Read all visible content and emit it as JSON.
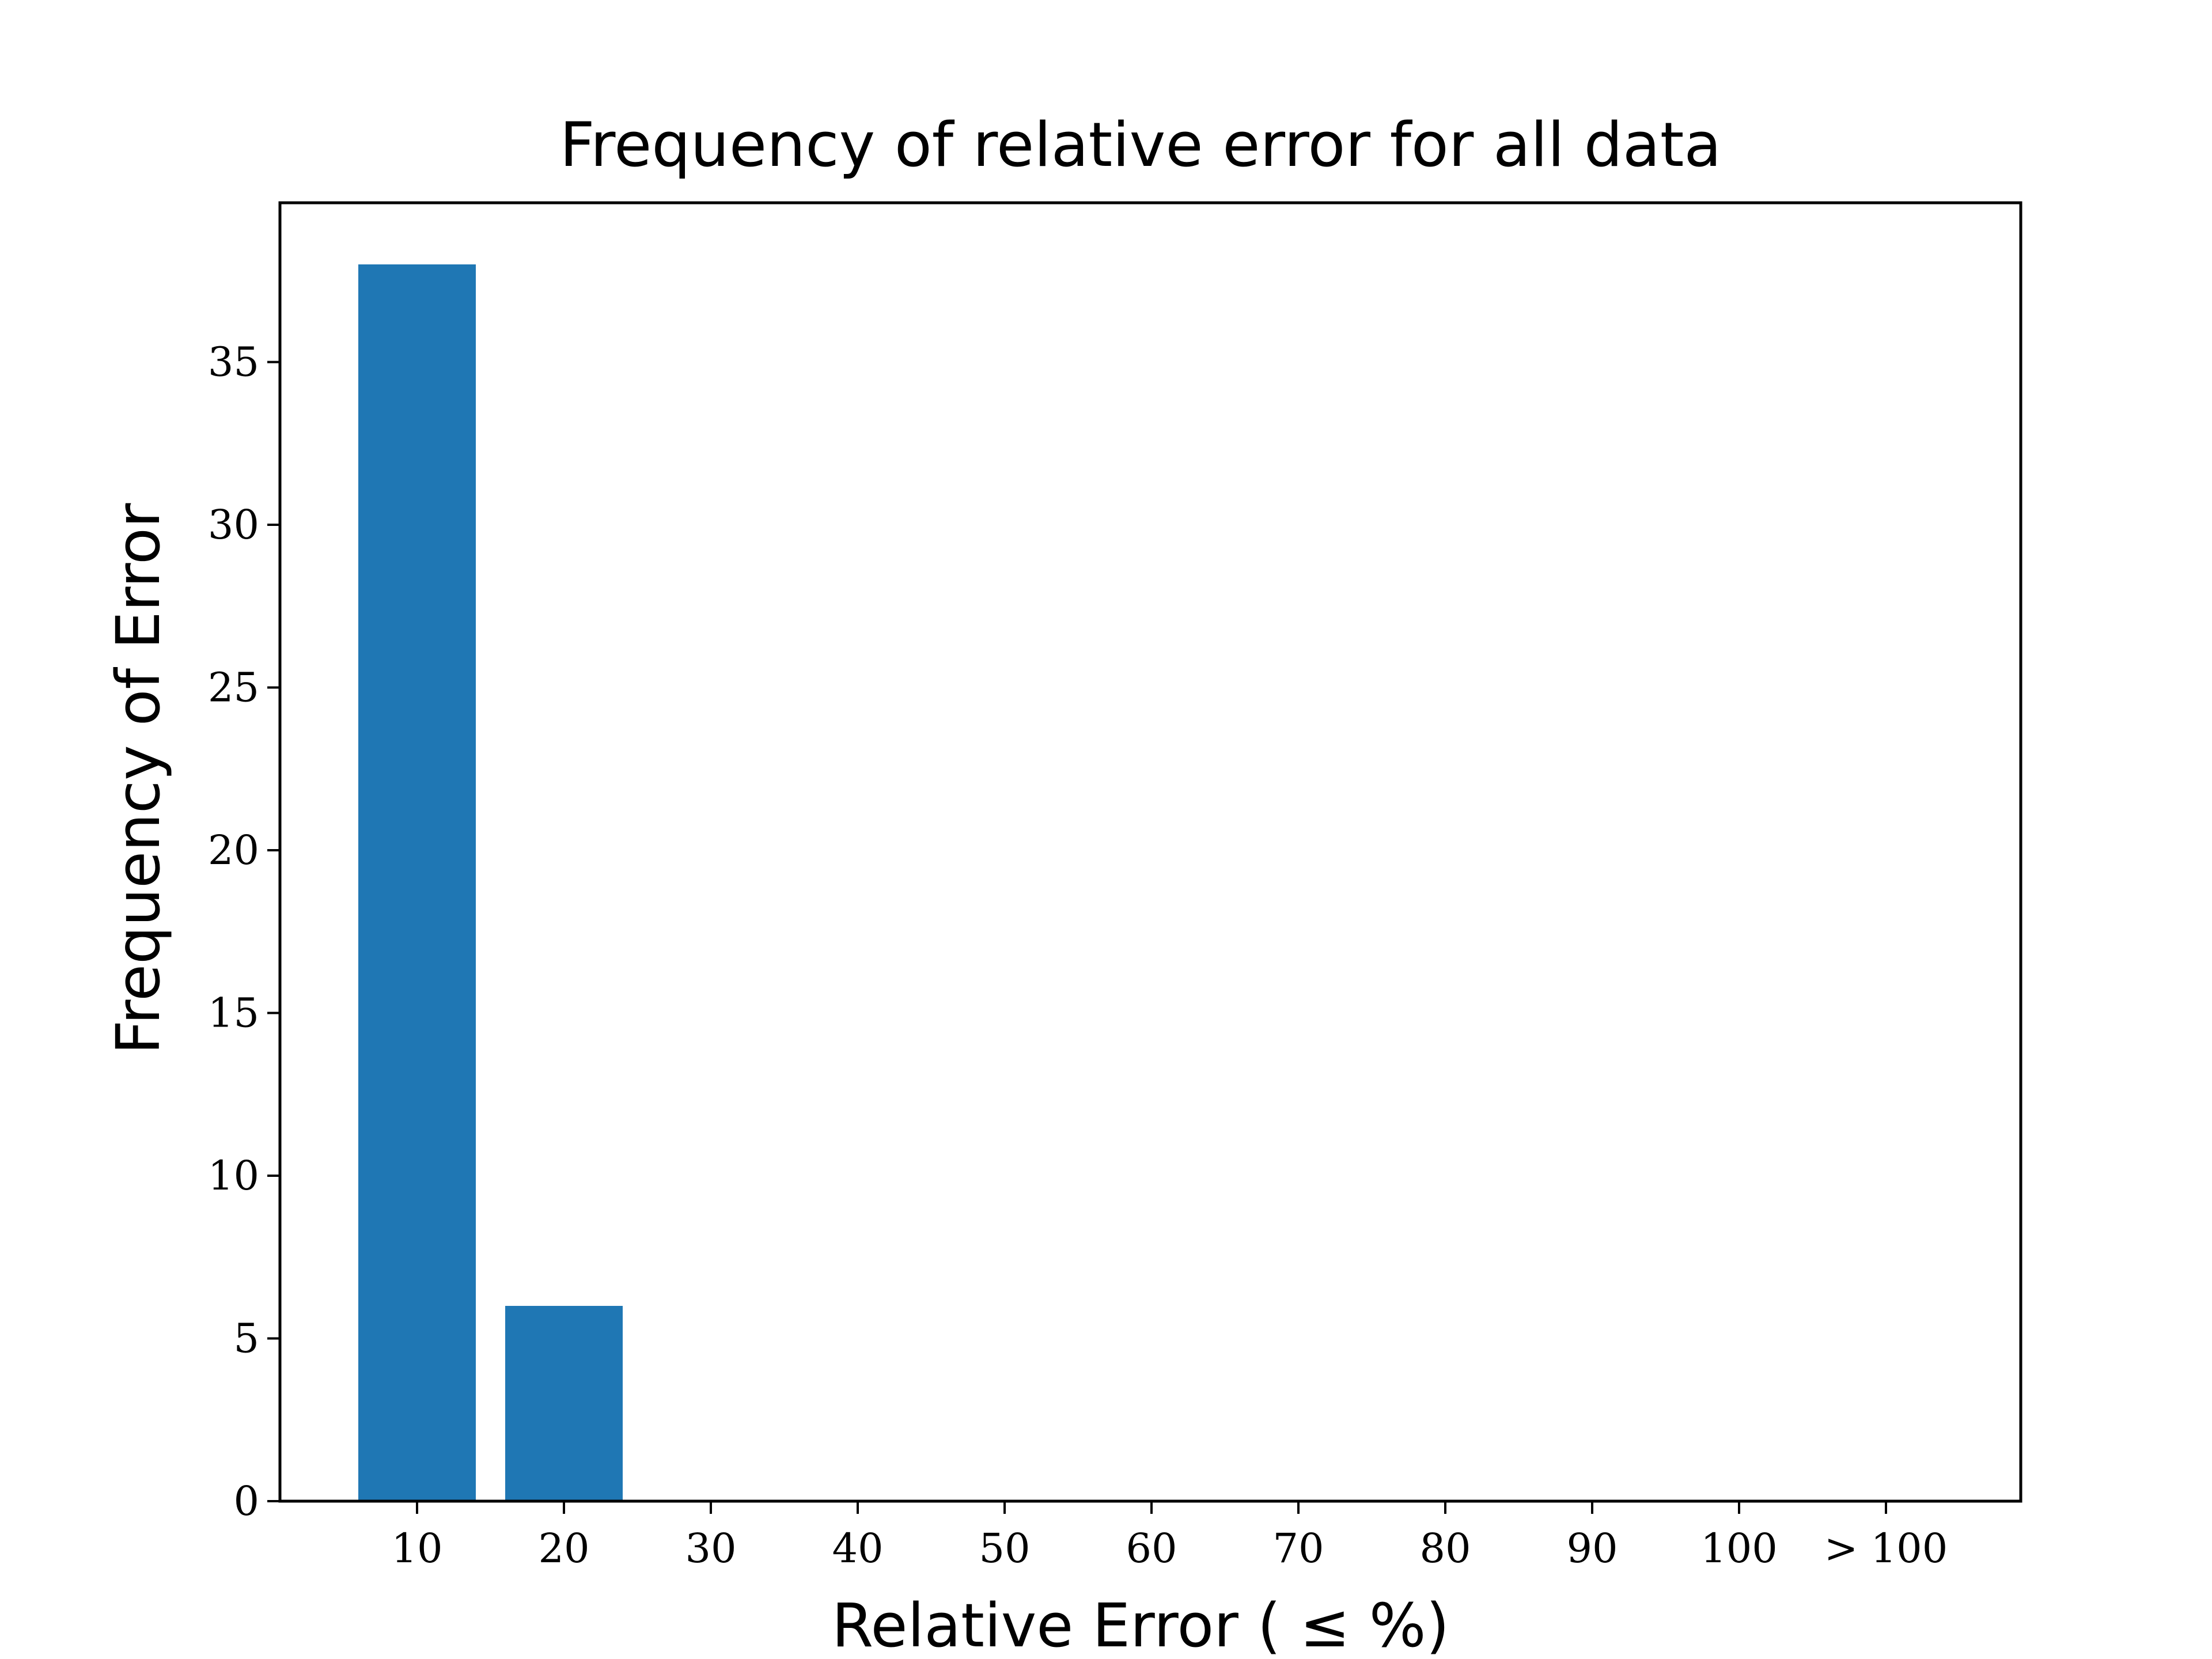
{
  "chart_data": {
    "type": "bar",
    "title": "Frequency of relative error for all data",
    "xlabel": "Relative Error ( ≤ %)",
    "ylabel": "Frequency of Error",
    "categories": [
      "10",
      "20",
      "30",
      "40",
      "50",
      "60",
      "70",
      "80",
      "90",
      "100",
      "> 100"
    ],
    "values": [
      38,
      6,
      0,
      0,
      0,
      0,
      0,
      0,
      0,
      0,
      0
    ],
    "ylim": [
      0,
      40
    ],
    "yticks": [
      0,
      5,
      10,
      15,
      20,
      25,
      30,
      35
    ],
    "grid": false,
    "bar_color": "#1f77b4"
  }
}
